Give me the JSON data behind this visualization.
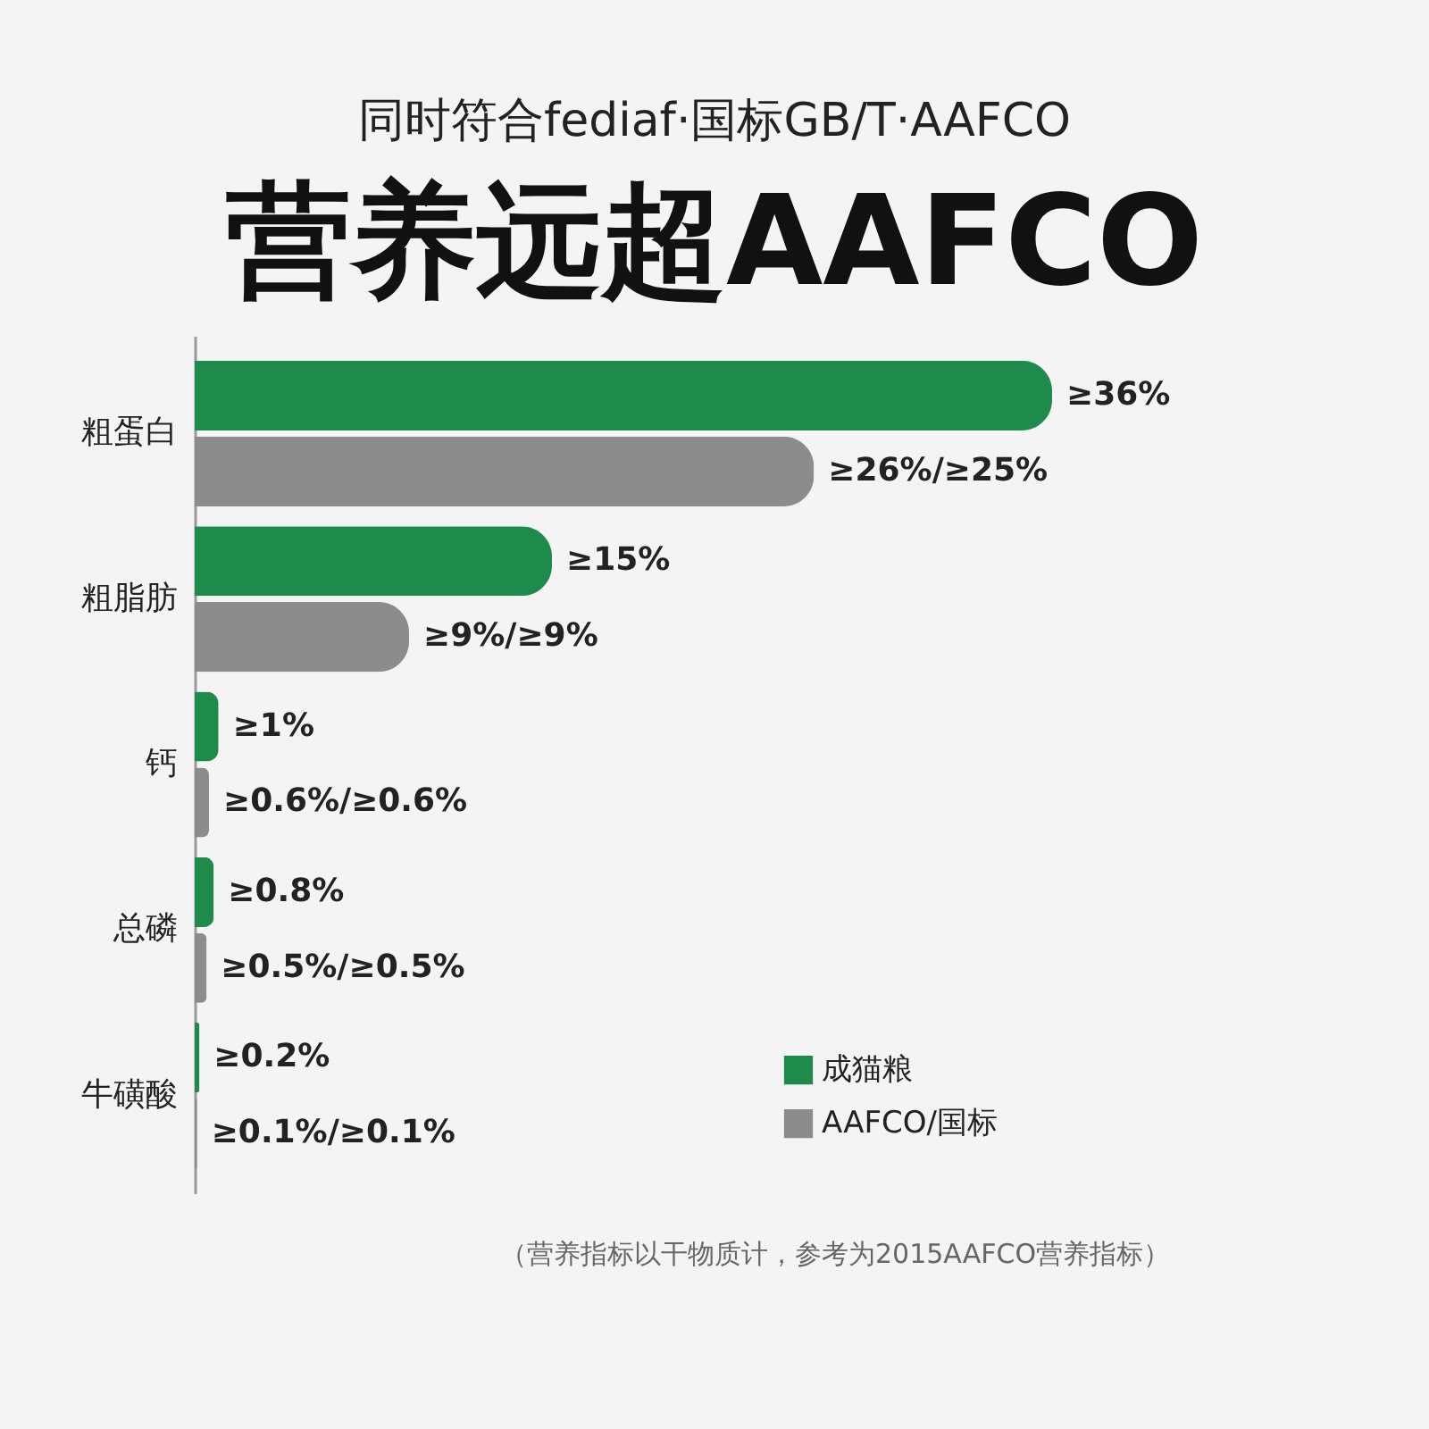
{
  "chart_data": {
    "type": "bar",
    "orientation": "horizontal",
    "title": "营养远超AAFCO",
    "subtitle": "同时符合fediaf·国标GB/T·AAFCO",
    "categories": [
      "粗蛋白",
      "粗脂肪",
      "钙",
      "总磷",
      "牛磺酸"
    ],
    "series": [
      {
        "name": "成猫粮",
        "color": "#1e8a4c",
        "values": [
          36,
          15,
          1,
          0.8,
          0.2
        ],
        "value_labels": [
          "≥36%",
          "≥15%",
          "≥1%",
          "≥0.8%",
          "≥0.2%"
        ]
      },
      {
        "name": "AAFCO/国标",
        "color": "#8c8c8c",
        "values": [
          26,
          9,
          0.6,
          0.5,
          0.1
        ],
        "value_labels": [
          "≥26%/≥25%",
          "≥9%/≥9%",
          "≥0.6%/≥0.6%",
          "≥0.5%/≥0.5%",
          "≥0.1%/≥0.1%"
        ]
      }
    ],
    "legend": "bottom right",
    "annotations": [
      "（营养指标以干物质计，参考为2015AAFCO营养指标）"
    ]
  }
}
